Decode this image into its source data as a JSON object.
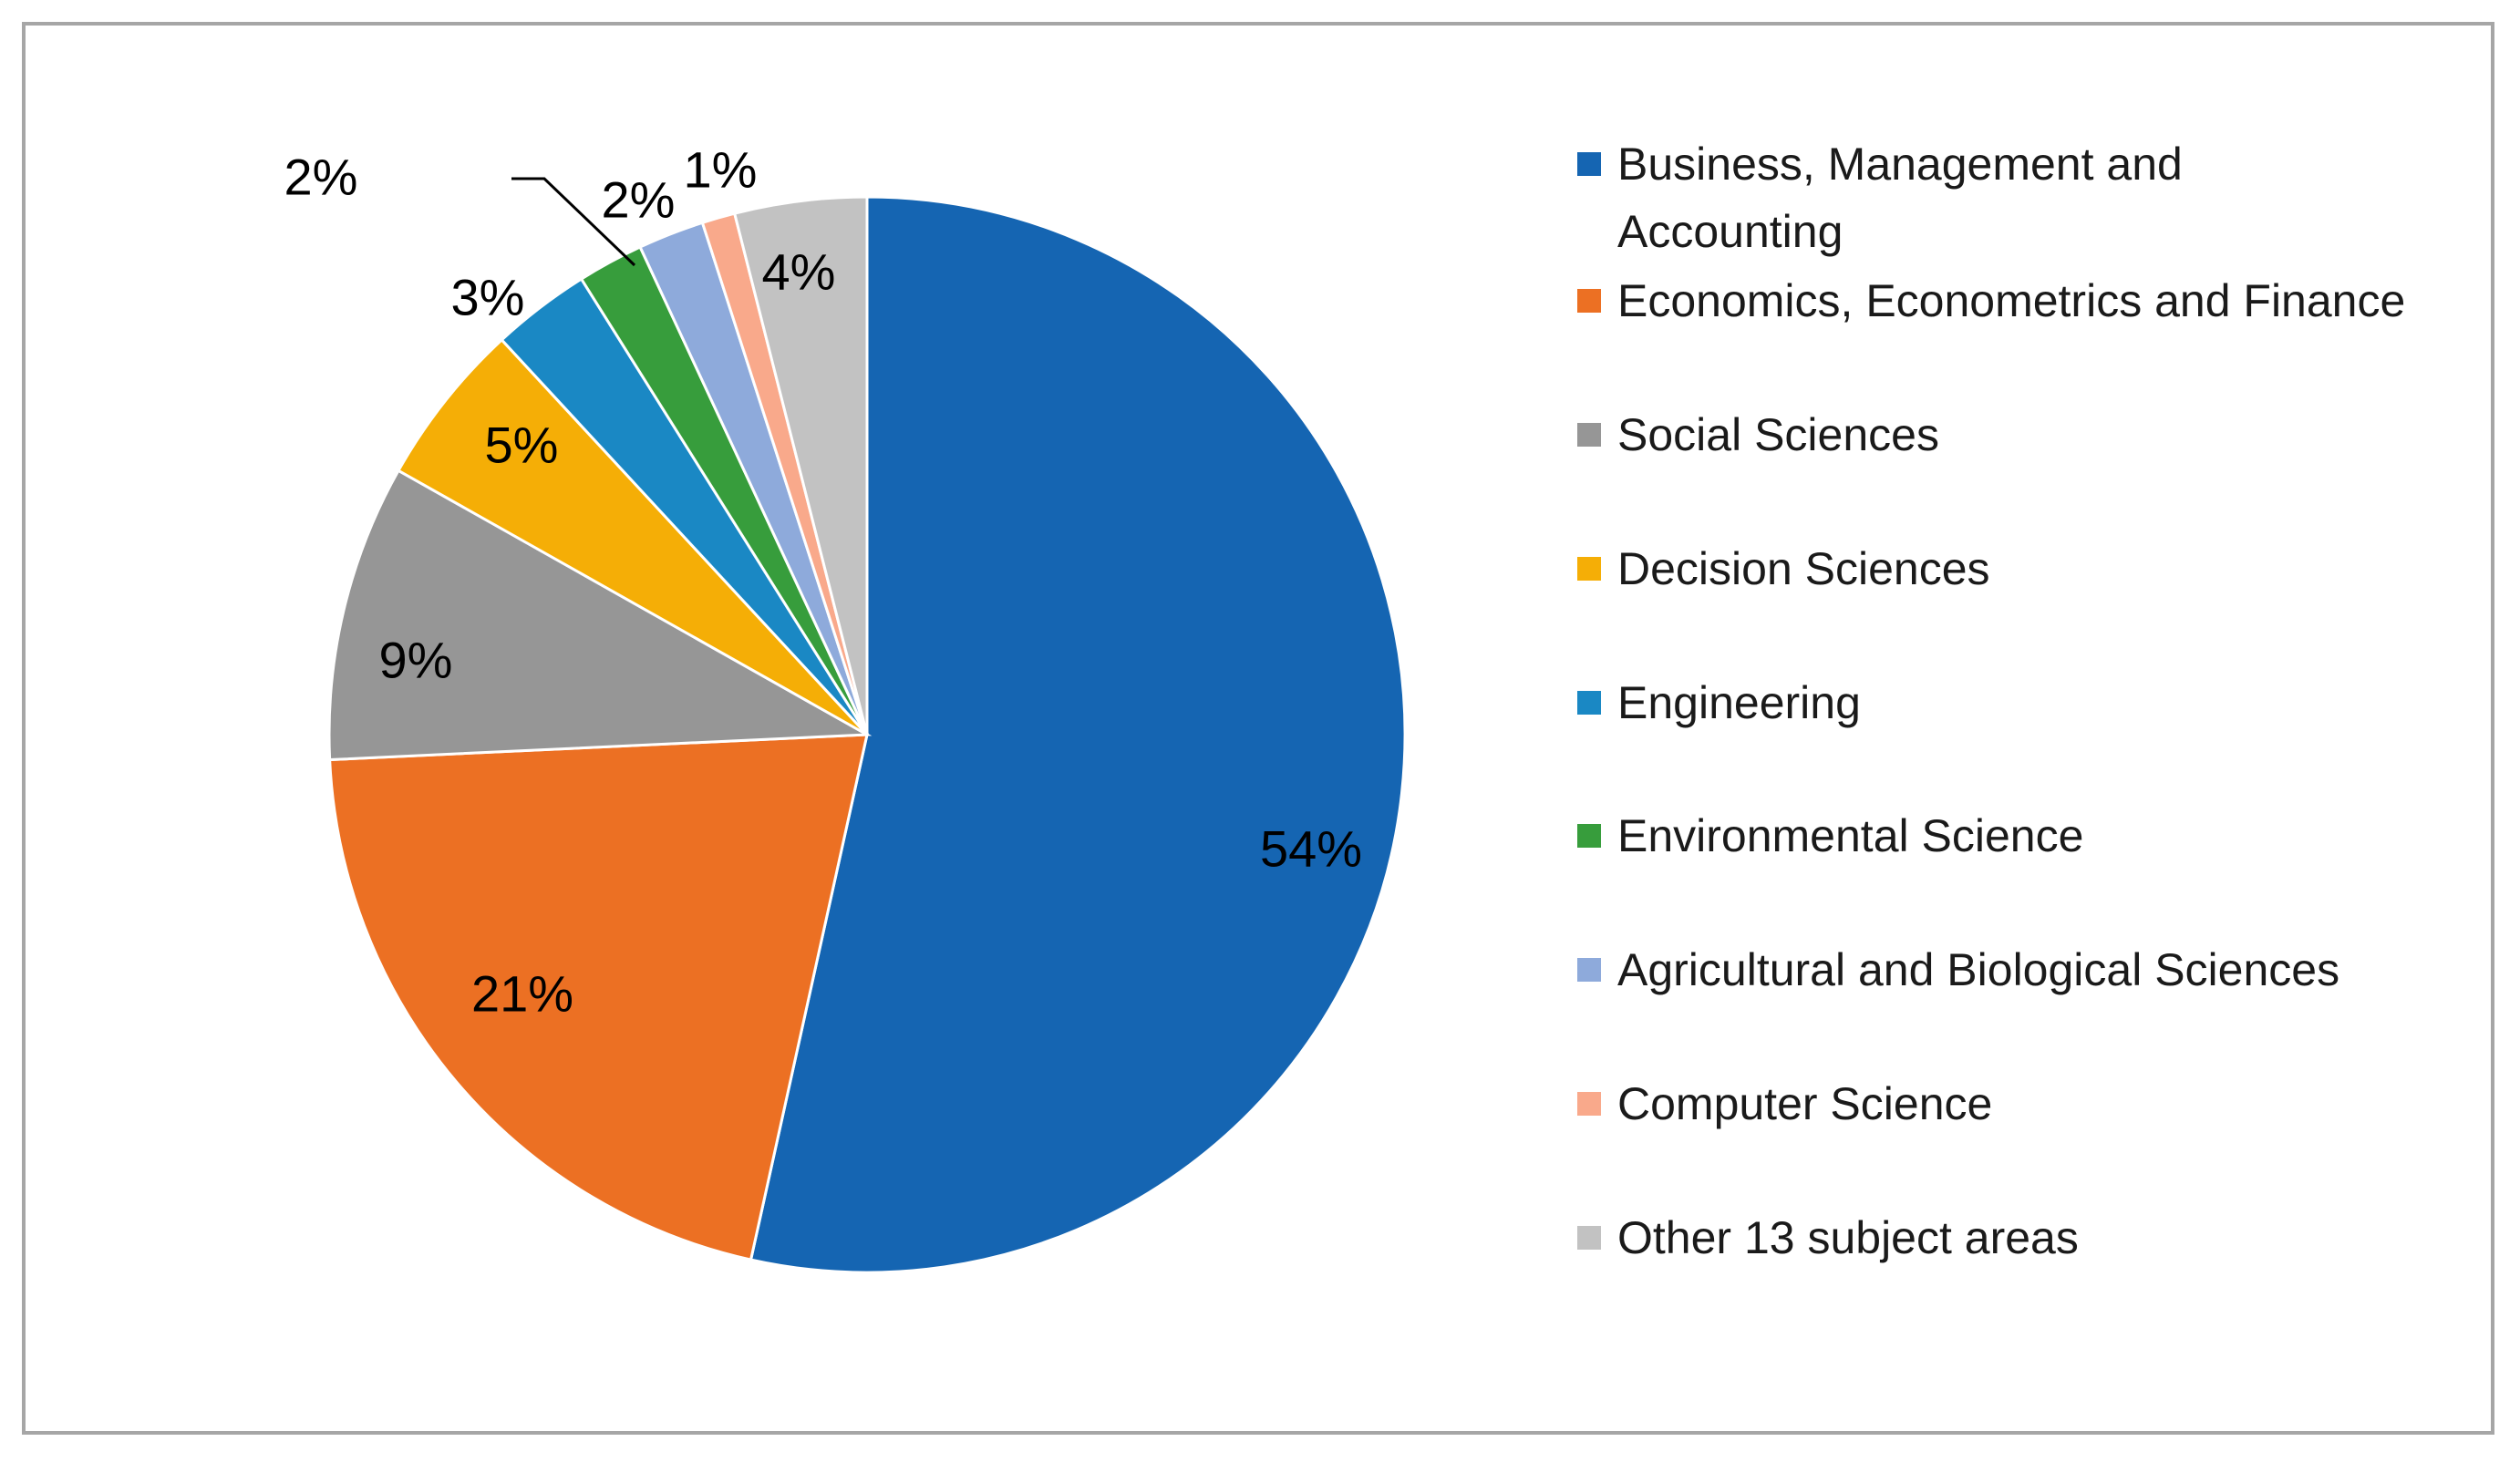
{
  "chart_data": {
    "type": "pie",
    "title": "",
    "start_angle_deg": 0,
    "direction": "clockwise",
    "legend_position": "right",
    "slices": [
      {
        "label": "Business, Management and Accounting",
        "legend_lines": [
          "Business, Management and",
          "Accounting"
        ],
        "value": 54,
        "display": "54%",
        "color": "#1565b2"
      },
      {
        "label": "Economics, Econometrics and Finance",
        "legend_lines": [
          "Economics, Econometrics and Finance"
        ],
        "value": 21,
        "display": "21%",
        "color": "#ec7023"
      },
      {
        "label": "Social Sciences",
        "legend_lines": [
          "Social Sciences"
        ],
        "value": 9,
        "display": "9%",
        "color": "#969696"
      },
      {
        "label": "Decision Sciences",
        "legend_lines": [
          "Decision Sciences"
        ],
        "value": 5,
        "display": "5%",
        "color": "#f5ae06"
      },
      {
        "label": "Engineering",
        "legend_lines": [
          "Engineering"
        ],
        "value": 3,
        "display": "3%",
        "color": "#1a88c4"
      },
      {
        "label": "Environmental Science",
        "legend_lines": [
          "Environmental Science"
        ],
        "value": 2,
        "display": "2%",
        "color": "#379d3c"
      },
      {
        "label": "Agricultural and Biological Sciences",
        "legend_lines": [
          "Agricultural and Biological Sciences"
        ],
        "value": 2,
        "display": "2%",
        "color": "#8eaadb"
      },
      {
        "label": "Computer Science",
        "legend_lines": [
          "Computer Science"
        ],
        "value": 1,
        "display": "1%",
        "color": "#f9a98b"
      },
      {
        "label": "Other 13 subject areas",
        "legend_lines": [
          "Other 13 subject areas"
        ],
        "value": 4,
        "display": "4%",
        "color": "#c2c2c2"
      }
    ]
  }
}
